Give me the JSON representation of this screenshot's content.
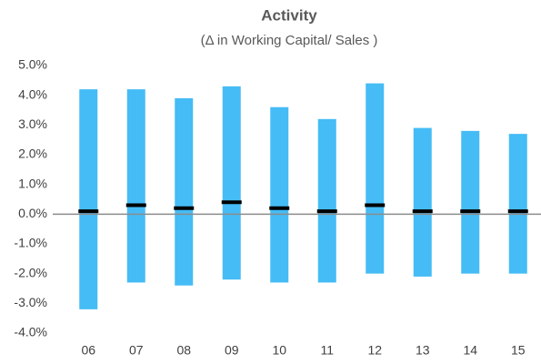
{
  "chart_data": {
    "type": "range",
    "title": "Activity",
    "subtitle": "(Δ in Working Capital/ Sales )",
    "categories": [
      "06",
      "07",
      "08",
      "09",
      "10",
      "11",
      "12",
      "13",
      "14",
      "15"
    ],
    "low": [
      -3.2,
      -2.3,
      -2.4,
      -2.2,
      -2.3,
      -2.3,
      -2.0,
      -2.1,
      -2.0,
      -2.0
    ],
    "high": [
      4.2,
      4.2,
      3.9,
      4.3,
      3.6,
      3.2,
      4.4,
      2.9,
      2.8,
      2.7
    ],
    "mid": [
      0.1,
      0.3,
      0.2,
      0.4,
      0.2,
      0.1,
      0.3,
      0.1,
      0.1,
      0.1
    ],
    "color": "#45bcf5",
    "mid_color": "#000000",
    "ylim": [
      -4,
      5
    ],
    "yticks": [
      {
        "value": -4,
        "label": "-4.0%"
      },
      {
        "value": -3,
        "label": "-3.0%"
      },
      {
        "value": -2,
        "label": "-2.0%"
      },
      {
        "value": -1,
        "label": "-1.0%"
      },
      {
        "value": 0,
        "label": "0.0%"
      },
      {
        "value": 1,
        "label": "1.0%"
      },
      {
        "value": 2,
        "label": "2.0%"
      },
      {
        "value": 3,
        "label": "3.0%"
      },
      {
        "value": 4,
        "label": "4.0%"
      },
      {
        "value": 5,
        "label": "5.0%"
      }
    ],
    "grid": false
  }
}
